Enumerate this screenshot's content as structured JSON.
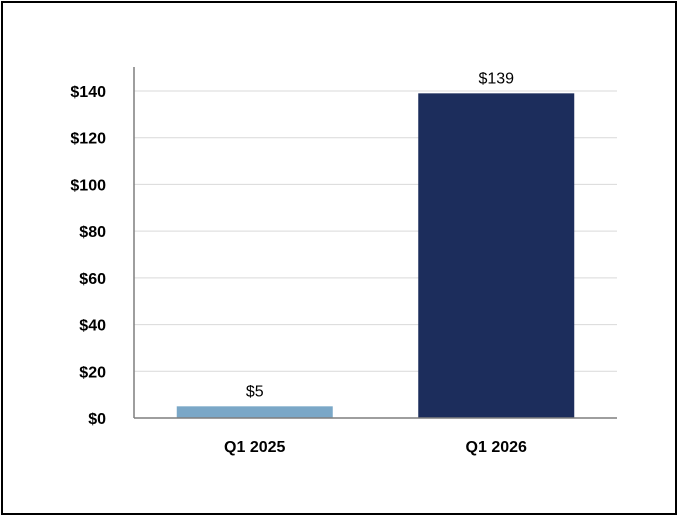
{
  "chart_data": {
    "type": "bar",
    "categories": [
      "Q1 2025",
      "Q1 2026"
    ],
    "values": [
      5,
      139
    ],
    "data_labels": [
      "$5",
      "$139"
    ],
    "bar_colors": [
      "#7aa7c7",
      "#1c2d5c"
    ],
    "ylim": [
      0,
      140
    ],
    "yticks": [
      0,
      20,
      40,
      60,
      80,
      100,
      120,
      140
    ],
    "ytick_labels": [
      "$0",
      "$20",
      "$40",
      "$60",
      "$80",
      "$100",
      "$120",
      "$140"
    ],
    "grid": true,
    "legend": "none"
  }
}
